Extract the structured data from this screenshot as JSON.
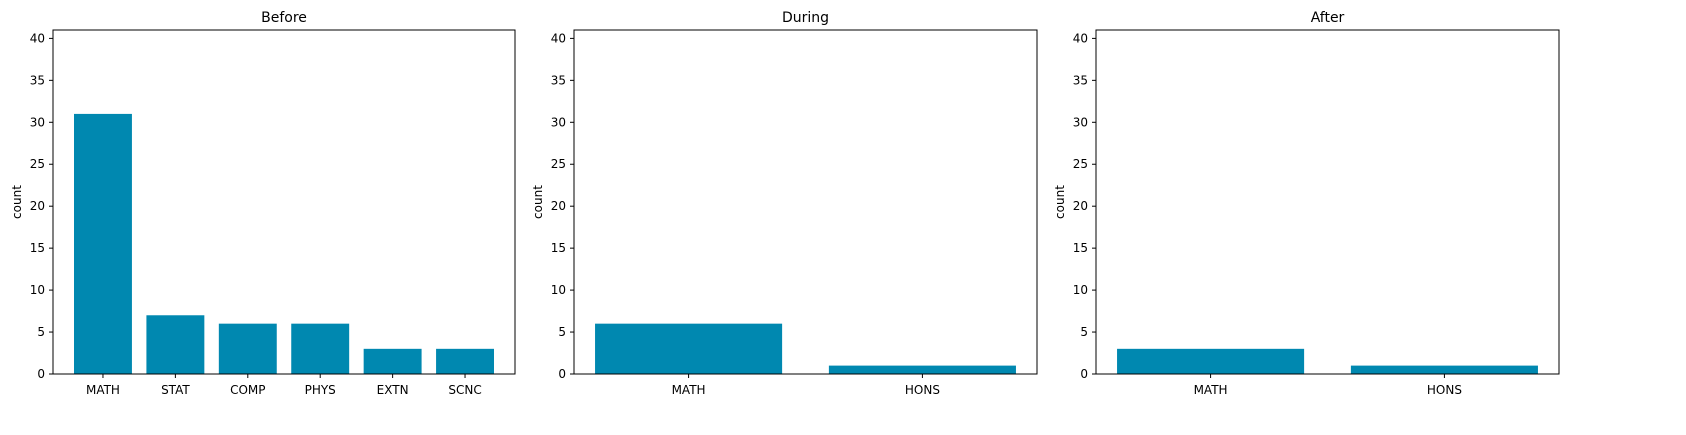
{
  "chart_data": [
    {
      "type": "bar",
      "title": "Before",
      "xlabel": "",
      "ylabel": "count",
      "ylim": [
        0,
        41
      ],
      "yticks": [
        0,
        5,
        10,
        15,
        20,
        25,
        30,
        35,
        40
      ],
      "categories": [
        "MATH",
        "STAT",
        "COMP",
        "PHYS",
        "EXTN",
        "SCNC"
      ],
      "values": [
        31,
        7,
        6,
        6,
        3,
        3
      ],
      "bar_color": "#0088b0",
      "grid": false
    },
    {
      "type": "bar",
      "title": "During",
      "xlabel": "",
      "ylabel": "count",
      "ylim": [
        0,
        41
      ],
      "yticks": [
        0,
        5,
        10,
        15,
        20,
        25,
        30,
        35,
        40
      ],
      "categories": [
        "MATH",
        "HONS"
      ],
      "values": [
        6,
        1
      ],
      "bar_color": "#0088b0",
      "grid": false
    },
    {
      "type": "bar",
      "title": "After",
      "xlabel": "",
      "ylabel": "count",
      "ylim": [
        0,
        41
      ],
      "yticks": [
        0,
        5,
        10,
        15,
        20,
        25,
        30,
        35,
        40
      ],
      "categories": [
        "MATH",
        "HONS"
      ],
      "values": [
        3,
        1
      ],
      "bar_color": "#0088b0",
      "grid": false
    }
  ]
}
